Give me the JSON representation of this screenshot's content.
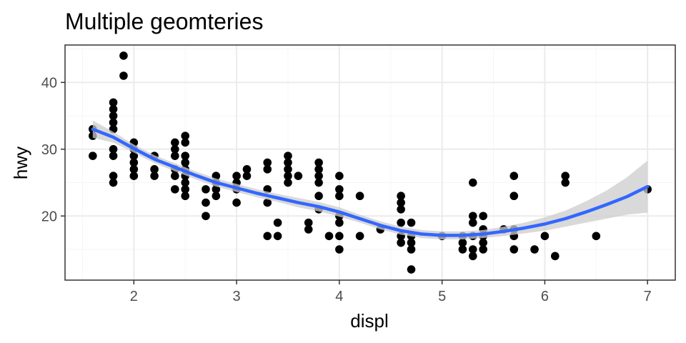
{
  "chart_data": {
    "type": "scatter",
    "title": "Multiple geomteries",
    "xlabel": "displ",
    "ylabel": "hwy",
    "xlim": [
      1.33,
      7.27
    ],
    "ylim": [
      10.4,
      45.6
    ],
    "x_ticks": [
      2,
      3,
      4,
      5,
      6,
      7
    ],
    "y_ticks": [
      20,
      30,
      40
    ],
    "x_tick_labels": [
      "2",
      "3",
      "4",
      "5",
      "6",
      "7"
    ],
    "y_tick_labels": [
      "20",
      "30",
      "40"
    ],
    "grid": true,
    "legend": "none",
    "colors": {
      "points": "#000000",
      "smooth_line": "#3366FF",
      "ribbon": "#cccccc",
      "grid_major": "#ebebeb",
      "grid_minor": "#f5f5f5",
      "panel_border": "#333333"
    },
    "points": [
      [
        1.6,
        33
      ],
      [
        1.6,
        32
      ],
      [
        1.6,
        29
      ],
      [
        1.8,
        37
      ],
      [
        1.8,
        36
      ],
      [
        1.8,
        35
      ],
      [
        1.8,
        34
      ],
      [
        1.8,
        33
      ],
      [
        1.8,
        30
      ],
      [
        1.8,
        29
      ],
      [
        1.8,
        26
      ],
      [
        1.8,
        25
      ],
      [
        1.9,
        44
      ],
      [
        1.9,
        41
      ],
      [
        2.0,
        31
      ],
      [
        2.0,
        30
      ],
      [
        2.0,
        29
      ],
      [
        2.0,
        28
      ],
      [
        2.0,
        27
      ],
      [
        2.0,
        26
      ],
      [
        2.2,
        29
      ],
      [
        2.2,
        27
      ],
      [
        2.2,
        26
      ],
      [
        2.4,
        31
      ],
      [
        2.4,
        30
      ],
      [
        2.4,
        29
      ],
      [
        2.4,
        27
      ],
      [
        2.4,
        26
      ],
      [
        2.4,
        24
      ],
      [
        2.5,
        32
      ],
      [
        2.5,
        31
      ],
      [
        2.5,
        29
      ],
      [
        2.5,
        28
      ],
      [
        2.5,
        27
      ],
      [
        2.5,
        26
      ],
      [
        2.5,
        25
      ],
      [
        2.5,
        24
      ],
      [
        2.5,
        23
      ],
      [
        2.7,
        24
      ],
      [
        2.7,
        22
      ],
      [
        2.7,
        20
      ],
      [
        2.8,
        26
      ],
      [
        2.8,
        25
      ],
      [
        2.8,
        24
      ],
      [
        2.8,
        23
      ],
      [
        3.0,
        26
      ],
      [
        3.0,
        25
      ],
      [
        3.0,
        24
      ],
      [
        3.0,
        22
      ],
      [
        3.1,
        27
      ],
      [
        3.1,
        26
      ],
      [
        3.3,
        28
      ],
      [
        3.3,
        27
      ],
      [
        3.3,
        24
      ],
      [
        3.3,
        22
      ],
      [
        3.3,
        17
      ],
      [
        3.4,
        19
      ],
      [
        3.4,
        17
      ],
      [
        3.5,
        29
      ],
      [
        3.5,
        28
      ],
      [
        3.5,
        27
      ],
      [
        3.5,
        26
      ],
      [
        3.5,
        25
      ],
      [
        3.6,
        26
      ],
      [
        3.7,
        19
      ],
      [
        3.7,
        18
      ],
      [
        3.8,
        28
      ],
      [
        3.8,
        27
      ],
      [
        3.8,
        26
      ],
      [
        3.8,
        25
      ],
      [
        3.8,
        23
      ],
      [
        3.8,
        21
      ],
      [
        3.9,
        17
      ],
      [
        4.0,
        26
      ],
      [
        4.0,
        24
      ],
      [
        4.0,
        23
      ],
      [
        4.0,
        20
      ],
      [
        4.0,
        19
      ],
      [
        4.0,
        17
      ],
      [
        4.0,
        15
      ],
      [
        4.2,
        23
      ],
      [
        4.2,
        17
      ],
      [
        4.4,
        18
      ],
      [
        4.6,
        23
      ],
      [
        4.6,
        22
      ],
      [
        4.6,
        21
      ],
      [
        4.6,
        19
      ],
      [
        4.6,
        17
      ],
      [
        4.6,
        16
      ],
      [
        4.7,
        19
      ],
      [
        4.7,
        17
      ],
      [
        4.7,
        16
      ],
      [
        4.7,
        15
      ],
      [
        4.7,
        12
      ],
      [
        5.0,
        17
      ],
      [
        5.2,
        17
      ],
      [
        5.2,
        16
      ],
      [
        5.2,
        15
      ],
      [
        5.3,
        25
      ],
      [
        5.3,
        20
      ],
      [
        5.3,
        19
      ],
      [
        5.3,
        17
      ],
      [
        5.3,
        15
      ],
      [
        5.3,
        14
      ],
      [
        5.4,
        20
      ],
      [
        5.4,
        18
      ],
      [
        5.4,
        17
      ],
      [
        5.4,
        16
      ],
      [
        5.4,
        15
      ],
      [
        5.6,
        18
      ],
      [
        5.7,
        26
      ],
      [
        5.7,
        23
      ],
      [
        5.7,
        18
      ],
      [
        5.7,
        17
      ],
      [
        5.7,
        15
      ],
      [
        5.9,
        15
      ],
      [
        6.0,
        17
      ],
      [
        6.1,
        14
      ],
      [
        6.2,
        26
      ],
      [
        6.2,
        25
      ],
      [
        6.5,
        17
      ],
      [
        7.0,
        24
      ]
    ],
    "smooth": {
      "x": [
        1.6,
        1.8,
        2.0,
        2.2,
        2.4,
        2.6,
        2.8,
        3.0,
        3.2,
        3.4,
        3.6,
        3.8,
        4.0,
        4.2,
        4.4,
        4.6,
        4.8,
        5.0,
        5.2,
        5.4,
        5.6,
        5.8,
        6.0,
        6.2,
        6.4,
        6.6,
        6.8,
        7.0
      ],
      "y": [
        33.0,
        31.8,
        30.1,
        28.5,
        27.3,
        26.1,
        25.0,
        24.2,
        23.4,
        22.7,
        22.0,
        21.4,
        20.6,
        19.6,
        18.6,
        17.8,
        17.3,
        17.1,
        17.1,
        17.3,
        17.7,
        18.2,
        18.8,
        19.6,
        20.6,
        21.7,
        22.9,
        24.4
      ],
      "lower": [
        31.7,
        31.0,
        29.5,
        27.9,
        26.7,
        25.5,
        24.4,
        23.6,
        22.8,
        22.1,
        21.3,
        20.7,
        19.9,
        19.0,
        18.0,
        17.2,
        16.7,
        16.5,
        16.5,
        16.7,
        17.0,
        17.4,
        17.8,
        18.4,
        19.0,
        19.6,
        20.2,
        20.5
      ],
      "upper": [
        34.3,
        32.6,
        30.7,
        29.1,
        27.9,
        26.7,
        25.6,
        24.8,
        24.0,
        23.3,
        22.7,
        22.1,
        21.3,
        20.2,
        19.2,
        18.4,
        17.9,
        17.7,
        17.7,
        17.9,
        18.4,
        19.0,
        19.8,
        20.8,
        22.2,
        23.8,
        25.8,
        28.3
      ]
    }
  }
}
